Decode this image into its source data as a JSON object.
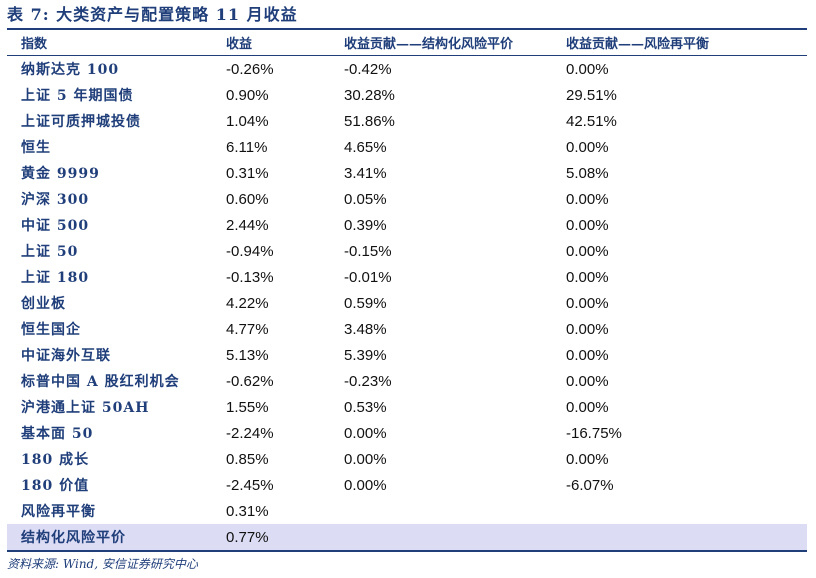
{
  "title": "表 7: 大类资产与配置策略 11 月收益",
  "headers": [
    "指数",
    "收益",
    "收益贡献——结构化风险平价",
    "收益贡献——风险再平衡"
  ],
  "rows": [
    [
      "纳斯达克 100",
      "-0.26%",
      "-0.42%",
      "0.00%"
    ],
    [
      "上证 5 年期国债",
      "0.90%",
      "30.28%",
      "29.51%"
    ],
    [
      "上证可质押城投债",
      "1.04%",
      "51.86%",
      "42.51%"
    ],
    [
      "恒生",
      "6.11%",
      "4.65%",
      "0.00%"
    ],
    [
      "黄金 9999",
      "0.31%",
      "3.41%",
      "5.08%"
    ],
    [
      "沪深 300",
      "0.60%",
      "0.05%",
      "0.00%"
    ],
    [
      "中证 500",
      "2.44%",
      "0.39%",
      "0.00%"
    ],
    [
      "上证 50",
      "-0.94%",
      "-0.15%",
      "0.00%"
    ],
    [
      "上证 180",
      "-0.13%",
      "-0.01%",
      "0.00%"
    ],
    [
      "创业板",
      "4.22%",
      "0.59%",
      "0.00%"
    ],
    [
      "恒生国企",
      "4.77%",
      "3.48%",
      "0.00%"
    ],
    [
      "中证海外互联",
      "5.13%",
      "5.39%",
      "0.00%"
    ],
    [
      "标普中国 A 股红利机会",
      "-0.62%",
      "-0.23%",
      "0.00%"
    ],
    [
      "沪港通上证 50AH",
      "1.55%",
      "0.53%",
      "0.00%"
    ],
    [
      "基本面 50",
      "-2.24%",
      "0.00%",
      "-16.75%"
    ],
    [
      "180 成长",
      "0.85%",
      "0.00%",
      "0.00%"
    ],
    [
      "180 价值",
      "-2.45%",
      "0.00%",
      "-6.07%"
    ],
    [
      "风险再平衡",
      "0.31%",
      "",
      ""
    ],
    [
      "结构化风险平价",
      "0.77%",
      "",
      ""
    ]
  ],
  "source": "资料来源: Wind, 安信证券研究中心"
}
